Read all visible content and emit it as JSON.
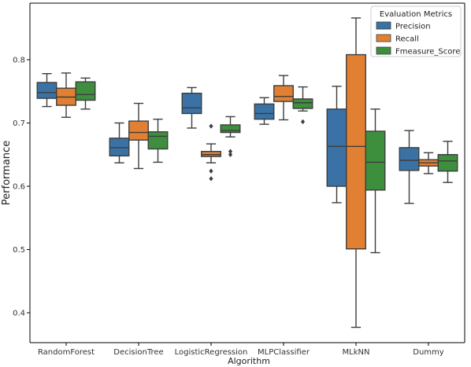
{
  "chart_data": {
    "type": "boxplot",
    "xlabel": "Algorithm",
    "ylabel": "Performance",
    "categories": [
      "RandomForest",
      "DecisionTree",
      "LogisticRegression",
      "MLPClassifier",
      "MLkNN",
      "Dummy"
    ],
    "ylim": [
      0.35,
      0.9
    ],
    "yticks": [
      0.4,
      0.5,
      0.6,
      0.7,
      0.8
    ],
    "grid": false,
    "legend": {
      "title": "Evaluation Metrics",
      "placement": "top-right"
    },
    "series": [
      {
        "name": "Precision",
        "color": "#3a72a6",
        "boxes": [
          {
            "whislo": 0.726,
            "q1": 0.739,
            "med": 0.748,
            "q3": 0.764,
            "whishi": 0.778,
            "fliers": []
          },
          {
            "whislo": 0.637,
            "q1": 0.648,
            "med": 0.661,
            "q3": 0.676,
            "whishi": 0.7,
            "fliers": []
          },
          {
            "whislo": 0.692,
            "q1": 0.715,
            "med": 0.724,
            "q3": 0.747,
            "whishi": 0.756,
            "fliers": []
          },
          {
            "whislo": 0.698,
            "q1": 0.706,
            "med": 0.715,
            "q3": 0.73,
            "whishi": 0.74,
            "fliers": []
          },
          {
            "whislo": 0.574,
            "q1": 0.6,
            "med": 0.663,
            "q3": 0.722,
            "whishi": 0.758,
            "fliers": []
          },
          {
            "whislo": 0.573,
            "q1": 0.625,
            "med": 0.641,
            "q3": 0.661,
            "whishi": 0.688,
            "fliers": []
          }
        ]
      },
      {
        "name": "Recall",
        "color": "#e18033",
        "boxes": [
          {
            "whislo": 0.709,
            "q1": 0.728,
            "med": 0.741,
            "q3": 0.755,
            "whishi": 0.779,
            "fliers": []
          },
          {
            "whislo": 0.628,
            "q1": 0.673,
            "med": 0.685,
            "q3": 0.703,
            "whishi": 0.731,
            "fliers": []
          },
          {
            "whislo": 0.637,
            "q1": 0.647,
            "med": 0.65,
            "q3": 0.655,
            "whishi": 0.667,
            "fliers": [
              0.695,
              0.624,
              0.612
            ]
          },
          {
            "whislo": 0.705,
            "q1": 0.734,
            "med": 0.742,
            "q3": 0.759,
            "whishi": 0.775,
            "fliers": []
          },
          {
            "whislo": 0.377,
            "q1": 0.501,
            "med": 0.663,
            "q3": 0.808,
            "whishi": 0.866,
            "fliers": []
          },
          {
            "whislo": 0.62,
            "q1": 0.632,
            "med": 0.637,
            "q3": 0.642,
            "whishi": 0.653,
            "fliers": []
          }
        ]
      },
      {
        "name": "Fmeasure_Score",
        "color": "#3d8e3d",
        "boxes": [
          {
            "whislo": 0.722,
            "q1": 0.736,
            "med": 0.745,
            "q3": 0.765,
            "whishi": 0.771,
            "fliers": []
          },
          {
            "whislo": 0.638,
            "q1": 0.659,
            "med": 0.679,
            "q3": 0.686,
            "whishi": 0.706,
            "fliers": []
          },
          {
            "whislo": 0.678,
            "q1": 0.685,
            "med": 0.688,
            "q3": 0.697,
            "whishi": 0.71,
            "fliers": [
              0.655,
              0.65
            ]
          },
          {
            "whislo": 0.719,
            "q1": 0.723,
            "med": 0.732,
            "q3": 0.738,
            "whishi": 0.757,
            "fliers": [
              0.702
            ]
          },
          {
            "whislo": 0.495,
            "q1": 0.594,
            "med": 0.638,
            "q3": 0.687,
            "whishi": 0.722,
            "fliers": []
          },
          {
            "whislo": 0.606,
            "q1": 0.624,
            "med": 0.64,
            "q3": 0.65,
            "whishi": 0.671,
            "fliers": []
          }
        ]
      }
    ]
  }
}
